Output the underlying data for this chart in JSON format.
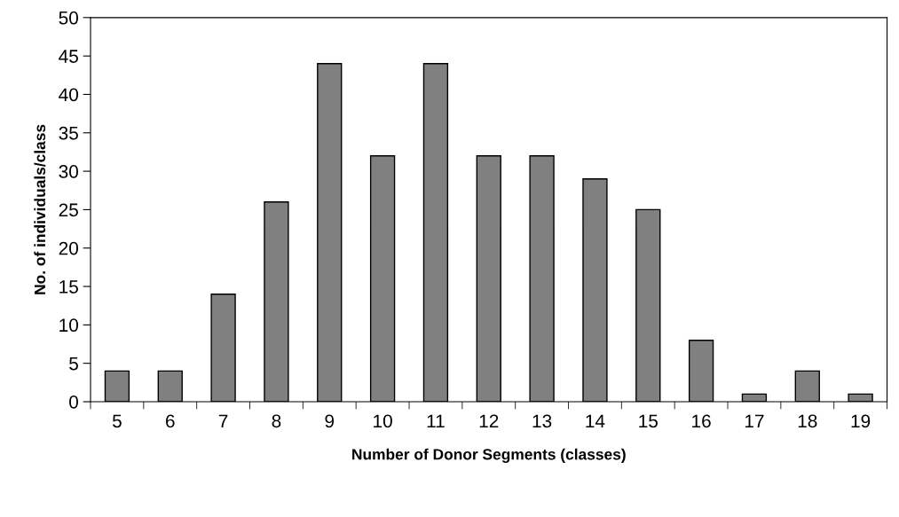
{
  "chart_data": {
    "type": "bar",
    "xlabel": "Number of Donor Segments (classes)",
    "ylabel": "No. of individuals/class",
    "categories": [
      "5",
      "6",
      "7",
      "8",
      "9",
      "10",
      "11",
      "12",
      "13",
      "14",
      "15",
      "16",
      "17",
      "18",
      "19"
    ],
    "values": [
      4,
      4,
      14,
      26,
      44,
      32,
      44,
      32,
      32,
      29,
      25,
      8,
      1,
      4,
      1
    ],
    "color": "#808080",
    "ylim": [
      0,
      50
    ],
    "yticks": [
      0,
      5,
      10,
      15,
      20,
      25,
      30,
      35,
      40,
      45,
      50
    ],
    "grid": false
  }
}
